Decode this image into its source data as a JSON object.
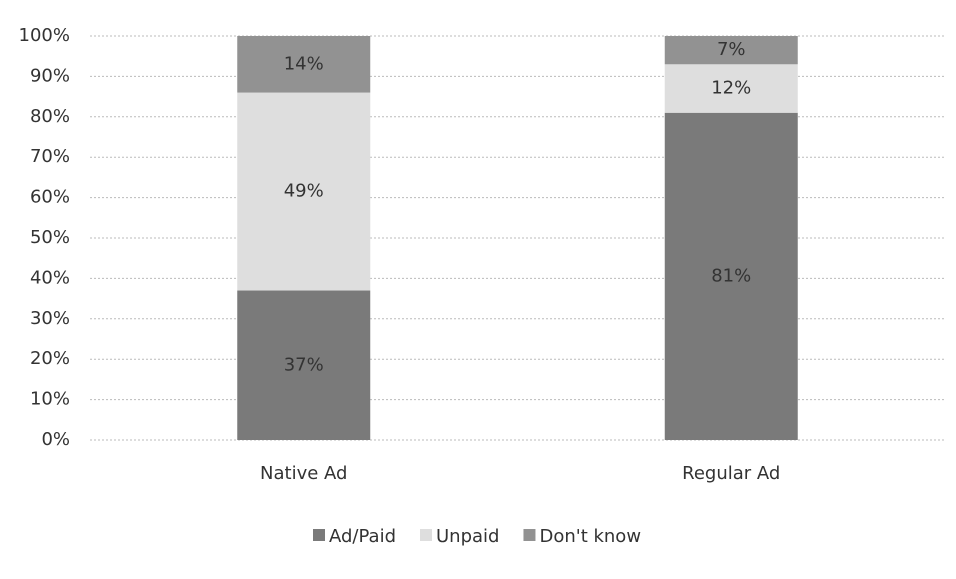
{
  "chart_data": {
    "type": "stacked_bar",
    "categories": [
      "Native Ad",
      "Regular Ad"
    ],
    "series": [
      {
        "name": "Ad/Paid",
        "color": "#7a7a7a",
        "values": [
          37,
          81
        ],
        "value_labels": [
          "37%",
          "81%"
        ]
      },
      {
        "name": "Unpaid",
        "color": "#dedede",
        "values": [
          49,
          12
        ],
        "value_labels": [
          "49%",
          "12%"
        ]
      },
      {
        "name": "Don't know",
        "color": "#929292",
        "values": [
          14,
          7
        ],
        "value_labels": [
          "14%",
          "7%"
        ]
      }
    ],
    "ylim": [
      0,
      100
    ],
    "yticks": [
      {
        "value": 0,
        "label": "0%"
      },
      {
        "value": 10,
        "label": "10%"
      },
      {
        "value": 20,
        "label": "20%"
      },
      {
        "value": 30,
        "label": "30%"
      },
      {
        "value": 40,
        "label": "40%"
      },
      {
        "value": 50,
        "label": "50%"
      },
      {
        "value": 60,
        "label": "60%"
      },
      {
        "value": 70,
        "label": "70%"
      },
      {
        "value": 80,
        "label": "80%"
      },
      {
        "value": 90,
        "label": "90%"
      },
      {
        "value": 100,
        "label": "100%"
      }
    ],
    "grid": true,
    "legend": "bottom"
  }
}
